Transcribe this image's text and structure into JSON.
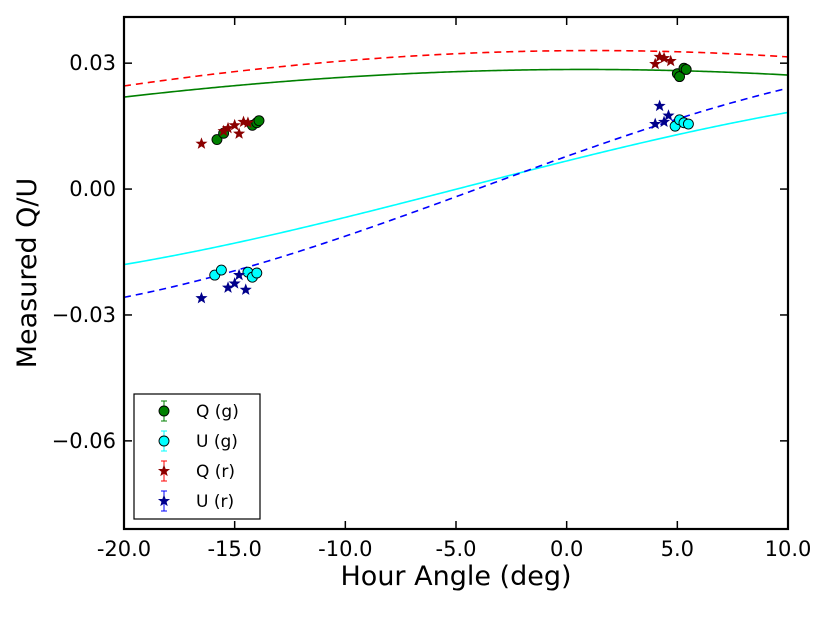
{
  "chart_data": {
    "type": "scatter",
    "title": "",
    "xlabel": "Hour Angle (deg)",
    "ylabel": "Measured Q/U",
    "xlim": [
      -20.0,
      10.0
    ],
    "ylim": [
      -0.081,
      0.041
    ],
    "x_ticks": [
      -20.0,
      -15.0,
      -10.0,
      -5.0,
      0.0,
      5.0,
      10.0
    ],
    "x_tick_labels": [
      "-20.0",
      "-15.0",
      "-10.0",
      "-5.0",
      "0.0",
      "5.0",
      "10.0"
    ],
    "y_ticks": [
      0.03,
      0.0,
      -0.03,
      -0.06
    ],
    "y_tick_labels": [
      "0.03",
      "0.00",
      "−0.03",
      "−0.06"
    ],
    "legend_position": "lower-left",
    "series": [
      {
        "name": "Q (g)",
        "marker": "circle",
        "color": "#008000",
        "points": [
          [
            -15.8,
            0.0118
          ],
          [
            -15.5,
            0.0133
          ],
          [
            -14.2,
            0.0152
          ],
          [
            -14.0,
            0.0158
          ],
          [
            -13.9,
            0.0163
          ],
          [
            5.0,
            0.0275
          ],
          [
            5.1,
            0.0268
          ],
          [
            5.3,
            0.0288
          ],
          [
            5.4,
            0.0285
          ]
        ]
      },
      {
        "name": "U (g)",
        "marker": "circle",
        "color": "#00ffff",
        "points": [
          [
            -15.9,
            -0.0205
          ],
          [
            -15.6,
            -0.0193
          ],
          [
            -14.4,
            -0.0198
          ],
          [
            -14.2,
            -0.021
          ],
          [
            -14.0,
            -0.02
          ],
          [
            4.9,
            0.015
          ],
          [
            5.1,
            0.0165
          ],
          [
            5.3,
            0.0158
          ],
          [
            5.5,
            0.0155
          ]
        ]
      },
      {
        "name": "Q (r)",
        "marker": "star",
        "color": "#8b0000",
        "points": [
          [
            -16.5,
            0.0108
          ],
          [
            -15.5,
            0.0138
          ],
          [
            -15.3,
            0.0145
          ],
          [
            -15.0,
            0.0152
          ],
          [
            -14.8,
            0.0132
          ],
          [
            -14.6,
            0.016
          ],
          [
            -14.4,
            0.0158
          ],
          [
            4.0,
            0.0298
          ],
          [
            4.2,
            0.0315
          ],
          [
            4.4,
            0.0312
          ],
          [
            4.7,
            0.0305
          ]
        ]
      },
      {
        "name": "U (r)",
        "marker": "star",
        "color": "#00008b",
        "points": [
          [
            -16.5,
            -0.026
          ],
          [
            -15.3,
            -0.0235
          ],
          [
            -15.0,
            -0.0225
          ],
          [
            -14.8,
            -0.0205
          ],
          [
            -14.5,
            -0.024
          ],
          [
            4.0,
            0.0155
          ],
          [
            4.2,
            0.0198
          ],
          [
            4.4,
            0.016
          ],
          [
            4.6,
            0.0175
          ]
        ]
      }
    ],
    "fits": [
      {
        "name": "Q (g) fit",
        "style": "solid",
        "color": "#008000",
        "amplitude": 0.0285,
        "phase_deg": 0.8,
        "fit_scale_deg": 30
      },
      {
        "name": "U (g) fit",
        "style": "solid",
        "color": "#00ffff",
        "offset": 0.0005,
        "amplitude": 0.0245,
        "center_deg": -4.6,
        "fit_scale_deg": 18
      },
      {
        "name": "Q (r) fit",
        "style": "dashed",
        "color": "#ff0000",
        "amplitude": 0.033,
        "phase_deg": 1.2,
        "fit_scale_deg": 29
      },
      {
        "name": "U (r) fit",
        "style": "dashed",
        "color": "#0000ff",
        "offset": 0.0005,
        "amplitude": 0.031,
        "center_deg": -3.8,
        "fit_scale_deg": 16
      }
    ],
    "legend": [
      {
        "label": "Q (g)",
        "marker": "circle",
        "color": "#008000"
      },
      {
        "label": "U (g)",
        "marker": "circle",
        "color": "#00ffff"
      },
      {
        "label": "Q (r)",
        "marker": "star",
        "color": "#8b0000"
      },
      {
        "label": "U (r)",
        "marker": "star",
        "color": "#00008b"
      }
    ]
  }
}
